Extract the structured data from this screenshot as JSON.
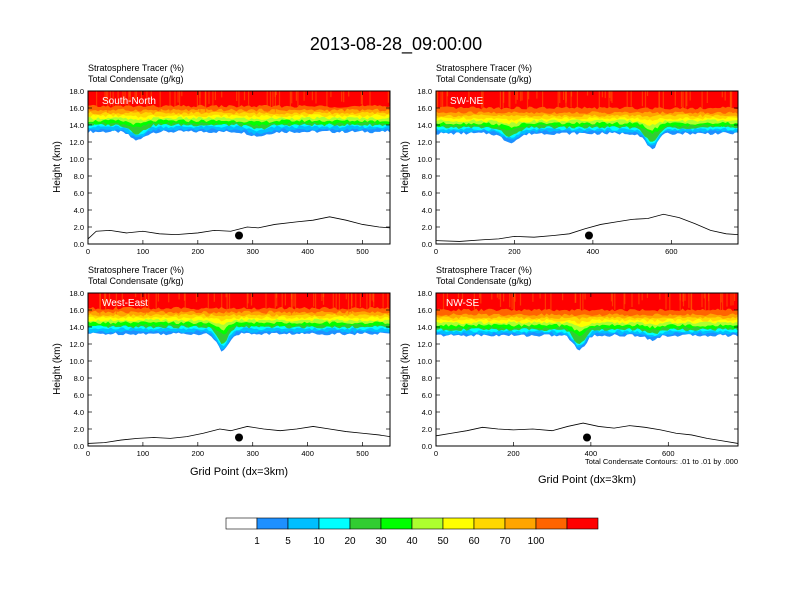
{
  "title": "2013-08-28_09:00:00",
  "header_lines": [
    "Stratosphere Tracer   (%)",
    "Total Condensate   (g/kg)"
  ],
  "colors": {
    "levels": [
      "#ffffff",
      "#1e90ff",
      "#00bfff",
      "#00ffff",
      "#32cd32",
      "#00ff00",
      "#adff2f",
      "#ffff00",
      "#ffd700",
      "#ffa500",
      "#ff6400",
      "#ff0000"
    ],
    "contour": "#000000",
    "marker": "#000000"
  },
  "colorbar": {
    "labels": [
      "1",
      "5",
      "10",
      "20",
      "30",
      "40",
      "50",
      "60",
      "70",
      "100"
    ]
  },
  "chart_data": [
    {
      "type": "heatmap",
      "name": "South-North",
      "xlabel": "",
      "ylabel": "Height (km)",
      "xlim": [
        0,
        550
      ],
      "ylim": [
        0,
        18
      ],
      "xticks": [
        "0",
        "100",
        "200",
        "300",
        "400",
        "500"
      ],
      "yticks": [
        "0.0",
        "2.0",
        "4.0",
        "6.0",
        "8.0",
        "10.0",
        "12.0",
        "14.0",
        "16.0",
        "18.0"
      ],
      "tracer_band_km": {
        "l1": 13.2,
        "l10": 13.8,
        "l30": 14.2,
        "l50": 14.8,
        "l70": 15.4,
        "l100": 16.2
      },
      "dips": [
        {
          "x": 90,
          "w": 25,
          "d": 1.0
        },
        {
          "x": 310,
          "w": 30,
          "d": 0.5
        }
      ],
      "terrain": [
        [
          0,
          0.6
        ],
        [
          15,
          1.5
        ],
        [
          40,
          1.6
        ],
        [
          70,
          1.3
        ],
        [
          100,
          1.5
        ],
        [
          130,
          1.2
        ],
        [
          160,
          1.1
        ],
        [
          200,
          1.3
        ],
        [
          230,
          1.6
        ],
        [
          260,
          1.5
        ],
        [
          290,
          2.0
        ],
        [
          310,
          1.9
        ],
        [
          340,
          2.3
        ],
        [
          380,
          2.6
        ],
        [
          410,
          2.8
        ],
        [
          440,
          3.2
        ],
        [
          470,
          2.8
        ],
        [
          500,
          2.3
        ],
        [
          530,
          2.0
        ],
        [
          550,
          1.9
        ]
      ],
      "marker": {
        "x": 275,
        "y": 1.0
      }
    },
    {
      "type": "heatmap",
      "name": "SW-NE",
      "xlabel": "",
      "ylabel": "Height (km)",
      "xlim": [
        0,
        770
      ],
      "ylim": [
        0,
        18
      ],
      "xticks": [
        "0",
        "200",
        "400",
        "600"
      ],
      "yticks": [
        "0.0",
        "2.0",
        "4.0",
        "6.0",
        "8.0",
        "10.0",
        "12.0",
        "14.0",
        "16.0",
        "18.0"
      ],
      "tracer_band_km": {
        "l1": 13.0,
        "l10": 13.5,
        "l30": 13.9,
        "l50": 14.5,
        "l70": 15.1,
        "l100": 16.0
      },
      "dips": [
        {
          "x": 190,
          "w": 40,
          "d": 1.0
        },
        {
          "x": 550,
          "w": 30,
          "d": 1.8
        }
      ],
      "terrain": [
        [
          0,
          0.4
        ],
        [
          60,
          0.3
        ],
        [
          120,
          0.5
        ],
        [
          160,
          0.6
        ],
        [
          200,
          0.9
        ],
        [
          250,
          0.8
        ],
        [
          300,
          1.0
        ],
        [
          340,
          1.2
        ],
        [
          380,
          1.8
        ],
        [
          420,
          2.3
        ],
        [
          460,
          2.6
        ],
        [
          500,
          2.9
        ],
        [
          540,
          3.0
        ],
        [
          580,
          3.5
        ],
        [
          620,
          3.1
        ],
        [
          660,
          2.4
        ],
        [
          700,
          1.6
        ],
        [
          740,
          1.2
        ],
        [
          770,
          1.1
        ]
      ],
      "marker": {
        "x": 390,
        "y": 1.0
      }
    },
    {
      "type": "heatmap",
      "name": "West-East",
      "xlabel": "",
      "ylabel": "Height (km)",
      "xlim": [
        0,
        550
      ],
      "ylim": [
        0,
        18
      ],
      "xticks": [
        "0",
        "100",
        "200",
        "300",
        "400",
        "500"
      ],
      "yticks": [
        "0.0",
        "2.0",
        "4.0",
        "6.0",
        "8.0",
        "10.0",
        "12.0",
        "14.0",
        "16.0",
        "18.0"
      ],
      "tracer_band_km": {
        "l1": 13.2,
        "l10": 13.8,
        "l30": 14.2,
        "l50": 14.8,
        "l70": 15.4,
        "l100": 16.2
      },
      "dips": [
        {
          "x": 245,
          "w": 20,
          "d": 2.0
        }
      ],
      "terrain": [
        [
          0,
          0.3
        ],
        [
          30,
          0.4
        ],
        [
          60,
          0.7
        ],
        [
          90,
          0.9
        ],
        [
          120,
          1.0
        ],
        [
          150,
          0.9
        ],
        [
          180,
          1.1
        ],
        [
          210,
          1.5
        ],
        [
          240,
          2.0
        ],
        [
          260,
          1.8
        ],
        [
          290,
          2.3
        ],
        [
          320,
          2.0
        ],
        [
          350,
          1.8
        ],
        [
          380,
          2.0
        ],
        [
          410,
          2.3
        ],
        [
          440,
          2.0
        ],
        [
          470,
          1.7
        ],
        [
          500,
          1.5
        ],
        [
          530,
          1.3
        ],
        [
          550,
          1.1
        ]
      ],
      "marker": {
        "x": 275,
        "y": 1.0
      }
    },
    {
      "type": "heatmap",
      "name": "NW-SE",
      "xlabel": "Grid Point (dx=3km)",
      "ylabel": "Height (km)",
      "xlim": [
        0,
        780
      ],
      "ylim": [
        0,
        18
      ],
      "xticks": [
        "0",
        "200",
        "400",
        "600"
      ],
      "yticks": [
        "0.0",
        "2.0",
        "4.0",
        "6.0",
        "8.0",
        "10.0",
        "12.0",
        "14.0",
        "16.0",
        "18.0"
      ],
      "tracer_band_km": {
        "l1": 13.0,
        "l10": 13.5,
        "l30": 13.9,
        "l50": 14.5,
        "l70": 15.1,
        "l100": 16.0
      },
      "dips": [
        {
          "x": 370,
          "w": 30,
          "d": 1.7
        },
        {
          "x": 560,
          "w": 30,
          "d": 0.5
        }
      ],
      "terrain": [
        [
          0,
          1.2
        ],
        [
          40,
          1.5
        ],
        [
          80,
          1.8
        ],
        [
          120,
          2.2
        ],
        [
          160,
          2.0
        ],
        [
          200,
          1.9
        ],
        [
          250,
          2.0
        ],
        [
          300,
          1.8
        ],
        [
          340,
          2.3
        ],
        [
          380,
          2.7
        ],
        [
          420,
          2.3
        ],
        [
          460,
          2.1
        ],
        [
          500,
          2.4
        ],
        [
          540,
          2.2
        ],
        [
          580,
          1.9
        ],
        [
          620,
          1.5
        ],
        [
          660,
          1.3
        ],
        [
          700,
          0.9
        ],
        [
          740,
          0.6
        ],
        [
          780,
          0.3
        ]
      ],
      "marker": {
        "x": 390,
        "y": 1.0
      }
    }
  ],
  "xlabel_left": "Grid Point (dx=3km)",
  "note": "Total Condensate Contours: .01 to .01 by .000"
}
